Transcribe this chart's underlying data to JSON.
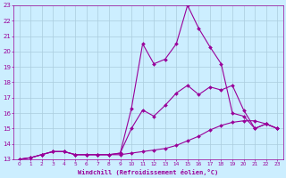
{
  "bg_color": "#cceeff",
  "grid_color": "#aaccdd",
  "line_color": "#990099",
  "xlabel": "Windchill (Refroidissement éolien,°C)",
  "xlim": [
    -0.5,
    23.5
  ],
  "ylim": [
    13,
    23
  ],
  "yticks": [
    13,
    14,
    15,
    16,
    17,
    18,
    19,
    20,
    21,
    22,
    23
  ],
  "xticks": [
    0,
    1,
    2,
    3,
    4,
    5,
    6,
    7,
    8,
    9,
    10,
    11,
    12,
    13,
    14,
    15,
    16,
    17,
    18,
    19,
    20,
    21,
    22,
    23
  ],
  "line1_x": [
    0,
    1,
    2,
    3,
    4,
    5,
    6,
    7,
    8,
    9,
    10,
    11,
    12,
    13,
    14,
    15,
    16,
    17,
    18,
    19,
    20,
    21,
    22,
    23
  ],
  "line1_y": [
    13.0,
    13.1,
    13.3,
    13.5,
    13.5,
    13.3,
    13.3,
    13.3,
    13.3,
    13.3,
    13.4,
    13.5,
    13.6,
    13.7,
    13.9,
    14.2,
    14.5,
    14.9,
    15.2,
    15.4,
    15.5,
    15.5,
    15.3,
    15.0
  ],
  "line2_x": [
    0,
    1,
    2,
    3,
    4,
    5,
    6,
    7,
    8,
    9,
    10,
    11,
    12,
    13,
    14,
    15,
    16,
    17,
    18,
    19,
    20,
    21,
    22,
    23
  ],
  "line2_y": [
    13.0,
    13.1,
    13.3,
    13.5,
    13.5,
    13.3,
    13.3,
    13.3,
    13.3,
    13.4,
    16.3,
    20.5,
    19.2,
    19.5,
    20.5,
    23.0,
    21.5,
    20.3,
    19.2,
    16.0,
    15.8,
    15.0,
    15.3,
    15.0
  ],
  "line3_x": [
    0,
    1,
    2,
    3,
    4,
    5,
    6,
    7,
    8,
    9,
    10,
    11,
    12,
    13,
    14,
    15,
    16,
    17,
    18,
    19,
    20,
    21,
    22,
    23
  ],
  "line3_y": [
    13.0,
    13.1,
    13.3,
    13.5,
    13.5,
    13.3,
    13.3,
    13.3,
    13.3,
    13.4,
    15.0,
    16.2,
    15.8,
    16.5,
    17.3,
    17.8,
    17.2,
    17.7,
    17.5,
    17.8,
    16.2,
    15.0,
    15.3,
    15.0
  ]
}
